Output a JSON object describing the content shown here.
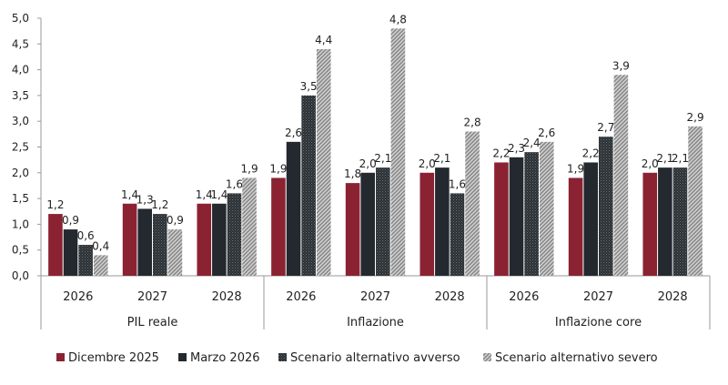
{
  "chart_data": {
    "type": "bar",
    "groups": [
      {
        "label": "PIL reale",
        "categories": [
          "2026",
          "2027",
          "2028"
        ]
      },
      {
        "label": "Inflazione",
        "categories": [
          "2026",
          "2027",
          "2028"
        ]
      },
      {
        "label": "Inflazione core",
        "categories": [
          "2026",
          "2027",
          "2028"
        ]
      }
    ],
    "series": [
      {
        "name": "Dicembre 2025",
        "color": "#8b2232",
        "pattern": "solid",
        "values": [
          1.2,
          1.4,
          1.4,
          1.9,
          1.8,
          2.0,
          2.2,
          1.9,
          2.0
        ]
      },
      {
        "name": "Marzo 2026",
        "color": "#23292e",
        "pattern": "solid",
        "values": [
          0.9,
          1.3,
          1.4,
          2.6,
          2.0,
          2.1,
          2.3,
          2.2,
          2.1
        ]
      },
      {
        "name": "Scenario alternativo avverso",
        "color": "#3c4347",
        "pattern": "dark-crosshatch",
        "values": [
          0.6,
          1.2,
          1.6,
          3.5,
          2.1,
          1.6,
          2.4,
          2.7,
          2.1
        ]
      },
      {
        "name": "Scenario alternativo severo",
        "color": "#a8a8a8",
        "pattern": "light-diagonal-hatch",
        "values": [
          0.4,
          0.9,
          1.9,
          4.4,
          4.8,
          2.8,
          2.6,
          3.9,
          2.9
        ]
      }
    ],
    "yticks": [
      "0,0",
      "0,5",
      "1,0",
      "1,5",
      "2,0",
      "2,5",
      "3,0",
      "3,5",
      "4,0",
      "4,5",
      "5,0"
    ],
    "ylim": [
      0,
      5
    ],
    "grid": false,
    "legend": "bottom",
    "decimal_separator": ","
  }
}
